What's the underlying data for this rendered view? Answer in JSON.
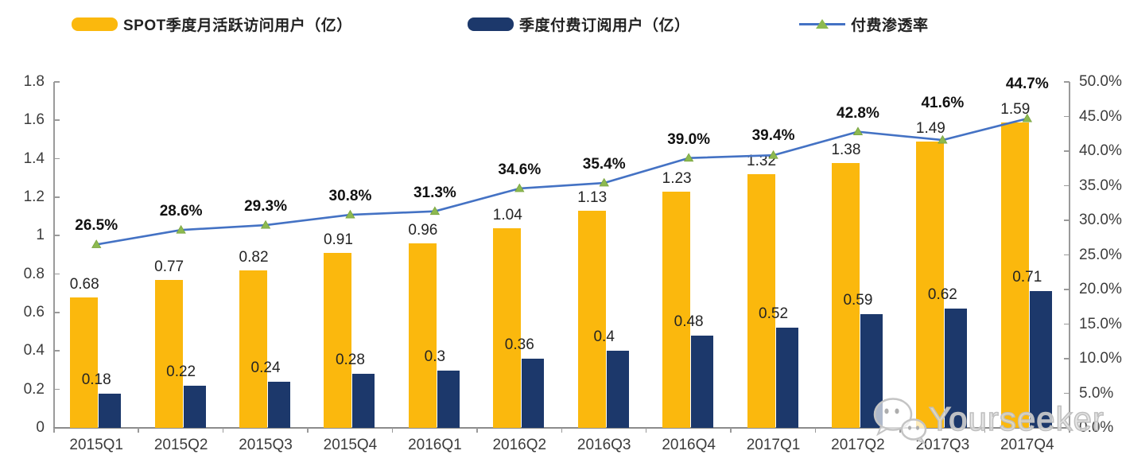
{
  "chart_data": {
    "type": "combo",
    "categories": [
      "2015Q1",
      "2015Q2",
      "2015Q3",
      "2015Q4",
      "2016Q1",
      "2016Q2",
      "2016Q3",
      "2016Q4",
      "2017Q1",
      "2017Q2",
      "2017Q3",
      "2017Q4"
    ],
    "series": [
      {
        "name": "SPOT季度月活跃访问用户（亿）",
        "type": "bar",
        "axis": "left",
        "color": "#FBB80D",
        "values": [
          0.68,
          0.77,
          0.82,
          0.91,
          0.96,
          1.04,
          1.13,
          1.23,
          1.32,
          1.38,
          1.49,
          1.59
        ]
      },
      {
        "name": "季度付费订阅用户（亿）",
        "type": "bar",
        "axis": "left",
        "color": "#1C386B",
        "values": [
          0.18,
          0.22,
          0.24,
          0.28,
          0.3,
          0.36,
          0.4,
          0.48,
          0.52,
          0.59,
          0.62,
          0.71
        ]
      },
      {
        "name": "付费渗透率",
        "type": "line",
        "axis": "right",
        "color": "#4472C4",
        "marker": "triangle",
        "marker_color": "#8CB950",
        "values": [
          26.5,
          28.6,
          29.3,
          30.8,
          31.3,
          34.6,
          35.4,
          39.0,
          39.4,
          42.8,
          41.6,
          44.7
        ],
        "value_labels": [
          "26.5%",
          "28.6%",
          "29.3%",
          "30.8%",
          "31.3%",
          "34.6%",
          "35.4%",
          "39.0%",
          "39.4%",
          "42.8%",
          "41.6%",
          "44.7%"
        ]
      }
    ],
    "left_axis": {
      "min": 0,
      "max": 1.8,
      "step": 0.2,
      "tick_labels": [
        "1.8",
        "1.6",
        "1.4",
        "1.2",
        "1",
        "0.8",
        "0.6",
        "0.4",
        "0.2",
        "0"
      ]
    },
    "right_axis": {
      "min": 0,
      "max": 50,
      "step": 5,
      "tick_labels": [
        "50.0%",
        "45.0%",
        "40.0%",
        "35.0%",
        "30.0%",
        "25.0%",
        "20.0%",
        "15.0%",
        "10.0%",
        "5.0%",
        "0.0%"
      ]
    },
    "grid": false,
    "legend_position": "top"
  },
  "watermark": {
    "text": "Yourseeker",
    "icon": "wechat-icon"
  }
}
